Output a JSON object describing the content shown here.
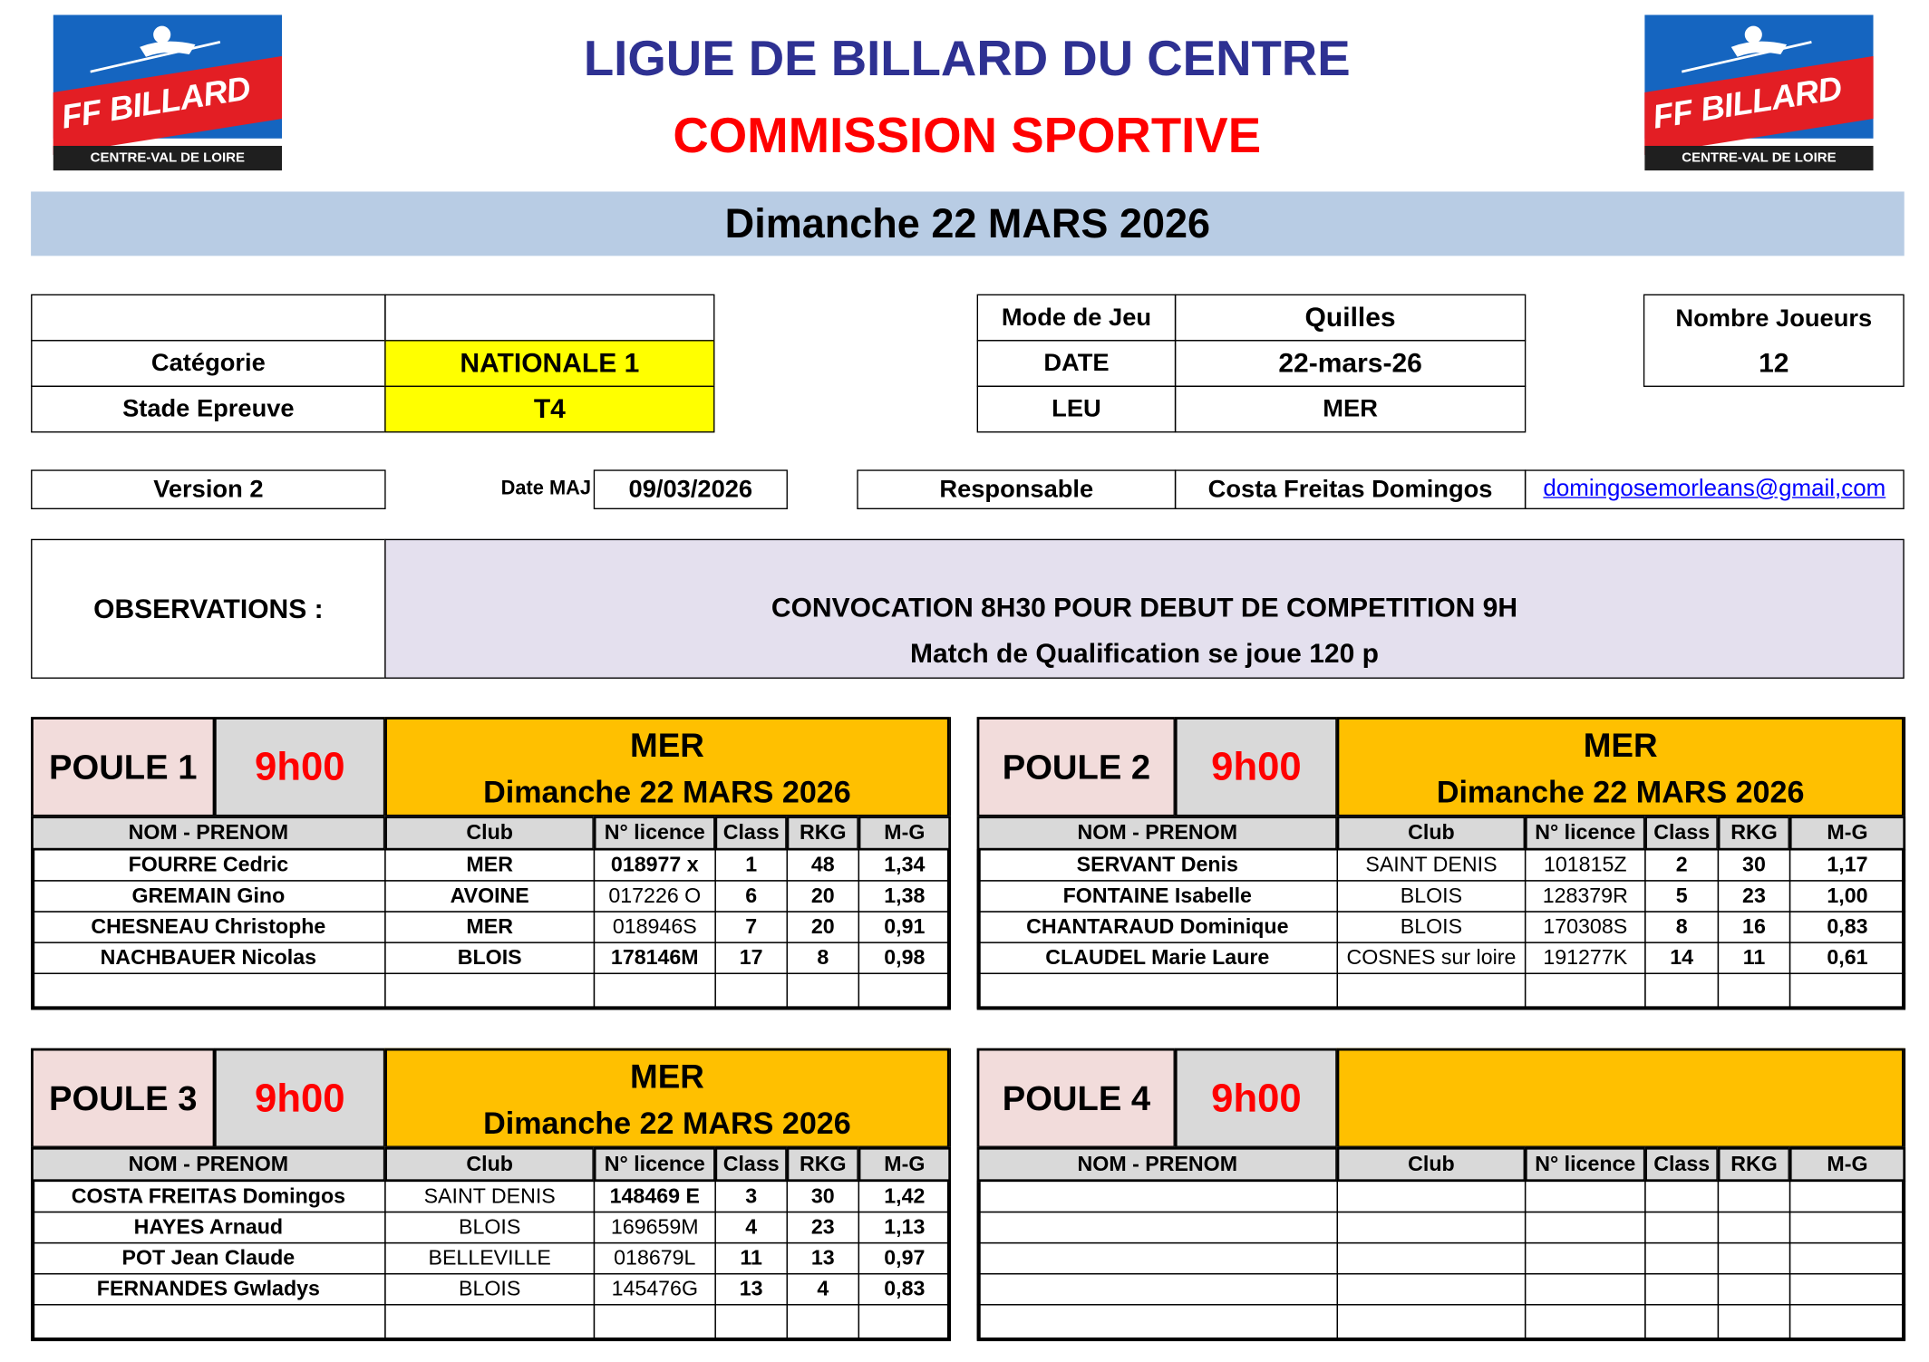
{
  "header": {
    "title": "LIGUE DE BILLARD DU CENTRE",
    "subtitle": "COMMISSION SPORTIVE",
    "date_banner": "Dimanche 22 MARS 2026",
    "logo": {
      "brand": "FF BILLARD",
      "region": "CENTRE-VAL DE LOIRE"
    },
    "colors": {
      "title": "#2e3192",
      "subtitle": "#ff0000",
      "banner": "#b8cce4"
    }
  },
  "info": {
    "categorie_label": "Catégorie",
    "categorie_value": "NATIONALE 1",
    "stade_label": "Stade Epreuve",
    "stade_value": "T4",
    "mode_label": "Mode de Jeu",
    "mode_value": "Quilles",
    "date_label": "DATE",
    "date_value": "22-mars-26",
    "leu_label": "LEU",
    "leu_value": "MER",
    "nombre_label": "Nombre Joueurs",
    "nombre_value": "12",
    "version": "Version 2",
    "date_maj_label": "Date MAJ",
    "date_maj_value": "09/03/2026",
    "responsable_label": "Responsable",
    "responsable_value": "Costa Freitas Domingos",
    "email": "domingosemorleans@gmail,com"
  },
  "observations": {
    "label": "OBSERVATIONS :",
    "line1": "CONVOCATION 8H30 POUR DEBUT DE COMPETITION 9H",
    "line2": "Match de Qualification se joue 120 p"
  },
  "columns": [
    "NOM - PRENOM",
    "Club",
    "N° licence",
    "Class",
    "RKG",
    "M-G"
  ],
  "poules": [
    {
      "title": "POULE 1",
      "time": "9h00",
      "lieu": "MER",
      "date": "Dimanche 22 MARS 2026",
      "rows": [
        [
          "FOURRE Cedric",
          "MER",
          "018977 x",
          "1",
          "48",
          "1,34"
        ],
        [
          "GREMAIN Gino",
          "AVOINE",
          "017226 O",
          "6",
          "20",
          "1,38"
        ],
        [
          "CHESNEAU Christophe",
          "MER",
          "018946S",
          "7",
          "20",
          "0,91"
        ],
        [
          "NACHBAUER Nicolas",
          "BLOIS",
          "178146M",
          "17",
          "8",
          "0,98"
        ],
        [
          "",
          "",
          "",
          "",
          "",
          ""
        ]
      ]
    },
    {
      "title": "POULE 2",
      "time": "9h00",
      "lieu": "MER",
      "date": "Dimanche 22 MARS 2026",
      "rows": [
        [
          "SERVANT Denis",
          "SAINT DENIS",
          "101815Z",
          "2",
          "30",
          "1,17"
        ],
        [
          "FONTAINE Isabelle",
          "BLOIS",
          "128379R",
          "5",
          "23",
          "1,00"
        ],
        [
          "CHANTARAUD Dominique",
          "BLOIS",
          "170308S",
          "8",
          "16",
          "0,83"
        ],
        [
          "CLAUDEL Marie Laure",
          "COSNES sur loire",
          "191277K",
          "14",
          "11",
          "0,61"
        ],
        [
          "",
          "",
          "",
          "",
          "",
          ""
        ]
      ]
    },
    {
      "title": "POULE 3",
      "time": "9h00",
      "lieu": "MER",
      "date": "Dimanche 22 MARS 2026",
      "rows": [
        [
          "COSTA FREITAS Domingos",
          "SAINT DENIS",
          "148469 E",
          "3",
          "30",
          "1,42"
        ],
        [
          "HAYES Arnaud",
          "BLOIS",
          "169659M",
          "4",
          "23",
          "1,13"
        ],
        [
          "POT Jean Claude",
          "BELLEVILLE",
          "018679L",
          "11",
          "13",
          "0,97"
        ],
        [
          "FERNANDES Gwladys",
          "BLOIS",
          "145476G",
          "13",
          "4",
          "0,83"
        ],
        [
          "",
          "",
          "",
          "",
          "",
          ""
        ]
      ]
    },
    {
      "title": "POULE 4",
      "time": "9h00",
      "lieu": "",
      "date": "",
      "rows": [
        [
          "",
          "",
          "",
          "",
          "",
          ""
        ],
        [
          "",
          "",
          "",
          "",
          "",
          ""
        ],
        [
          "",
          "",
          "",
          "",
          "",
          ""
        ],
        [
          "",
          "",
          "",
          "",
          "",
          ""
        ],
        [
          "",
          "",
          "",
          "",
          "",
          ""
        ]
      ]
    }
  ],
  "colors": {
    "poule_title_bg": "#f2dcdb",
    "time_bg": "#d9d9d9",
    "time_text": "#ff0000",
    "lieu_bg": "#ffc000",
    "header_bg": "#d9d9d9",
    "observations_bg": "#e4e0ee",
    "highlight": "#ffff00"
  }
}
